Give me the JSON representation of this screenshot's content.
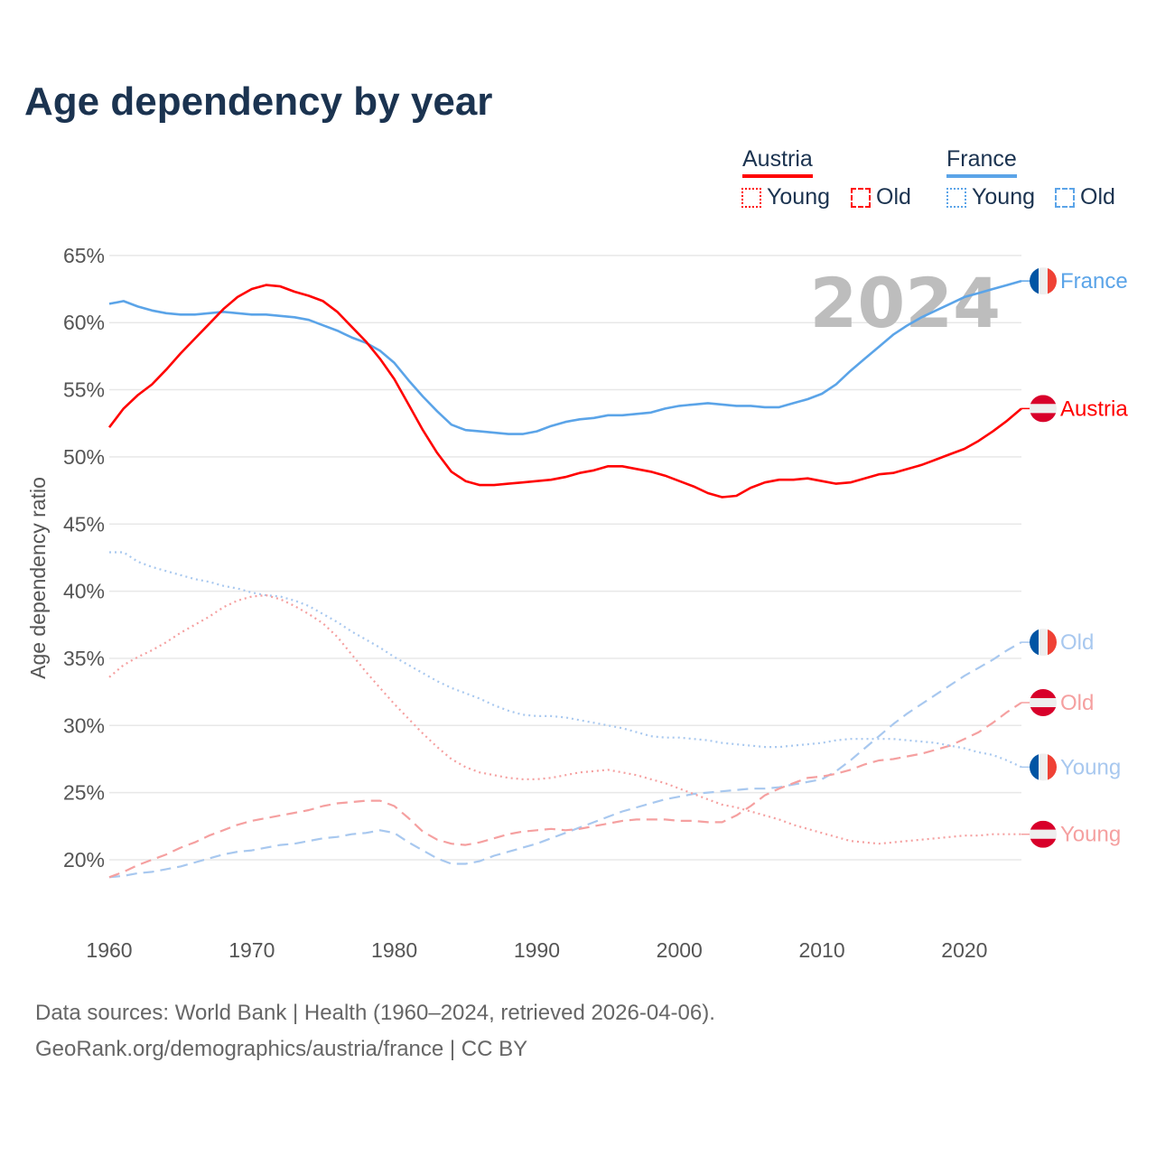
{
  "title": "Age dependency by year",
  "legend": {
    "austria": {
      "label": "Austria",
      "young": "Young",
      "old": "Old",
      "color": "#ff0000",
      "light": "#f5a0a0"
    },
    "france": {
      "label": "France",
      "young": "Young",
      "old": "Old",
      "color": "#5ba4e8",
      "light": "#a8c8ef"
    }
  },
  "footer": {
    "line1": "Data sources: World Bank | Health (1960–2024, retrieved 2026-04-06).",
    "line2": "GeoRank.org/demographics/austria/france | CC BY"
  },
  "chart_data": {
    "type": "line",
    "title": "Age dependency by year",
    "xlabel": "",
    "ylabel": "Age dependency ratio",
    "year_watermark": "2024",
    "xlim": [
      1960,
      2024
    ],
    "ylim": [
      15,
      65
    ],
    "x_ticks": [
      1960,
      1970,
      1980,
      1990,
      2000,
      2010,
      2020
    ],
    "y_ticks": [
      "20%",
      "25%",
      "30%",
      "35%",
      "40%",
      "45%",
      "50%",
      "55%",
      "60%",
      "65%"
    ],
    "y_tick_values": [
      20,
      25,
      30,
      35,
      40,
      45,
      50,
      55,
      60,
      65
    ],
    "grid": true,
    "x_start": 1960,
    "series": [
      {
        "name": "France",
        "country": "France",
        "kind": "total",
        "end_label": "France",
        "color": "#5ba4e8",
        "dash": "solid",
        "values": [
          61.4,
          61.6,
          61.2,
          60.9,
          60.7,
          60.6,
          60.6,
          60.7,
          60.8,
          60.7,
          60.6,
          60.6,
          60.5,
          60.4,
          60.2,
          59.8,
          59.4,
          58.9,
          58.5,
          57.9,
          57.0,
          55.7,
          54.5,
          53.4,
          52.4,
          52.0,
          51.9,
          51.8,
          51.7,
          51.7,
          51.9,
          52.3,
          52.6,
          52.8,
          52.9,
          53.1,
          53.1,
          53.2,
          53.3,
          53.6,
          53.8,
          53.9,
          54.0,
          53.9,
          53.8,
          53.8,
          53.7,
          53.7,
          54.0,
          54.3,
          54.7,
          55.4,
          56.4,
          57.3,
          58.2,
          59.1,
          59.8,
          60.4,
          60.9,
          61.4,
          61.9,
          62.2,
          62.5,
          62.8,
          63.1
        ]
      },
      {
        "name": "Austria",
        "country": "Austria",
        "kind": "total",
        "end_label": "Austria",
        "color": "#ff0000",
        "dash": "solid",
        "values": [
          52.2,
          53.6,
          54.6,
          55.4,
          56.5,
          57.7,
          58.8,
          59.9,
          61.0,
          61.9,
          62.5,
          62.8,
          62.7,
          62.3,
          62.0,
          61.6,
          60.8,
          59.7,
          58.6,
          57.3,
          55.8,
          53.9,
          52.0,
          50.3,
          48.9,
          48.2,
          47.9,
          47.9,
          48.0,
          48.1,
          48.2,
          48.3,
          48.5,
          48.8,
          49.0,
          49.3,
          49.3,
          49.1,
          48.9,
          48.6,
          48.2,
          47.8,
          47.3,
          47.0,
          47.1,
          47.7,
          48.1,
          48.3,
          48.3,
          48.4,
          48.2,
          48.0,
          48.1,
          48.4,
          48.7,
          48.8,
          49.1,
          49.4,
          49.8,
          50.2,
          50.6,
          51.2,
          51.9,
          52.7,
          53.6
        ]
      },
      {
        "name": "France Old",
        "country": "France",
        "kind": "old",
        "end_label": "Old",
        "color": "#a8c8ef",
        "dash": "dashed",
        "values": [
          18.7,
          18.8,
          19.0,
          19.1,
          19.3,
          19.5,
          19.8,
          20.1,
          20.4,
          20.6,
          20.7,
          20.9,
          21.1,
          21.2,
          21.4,
          21.6,
          21.7,
          21.9,
          22.0,
          22.2,
          22.0,
          21.3,
          20.7,
          20.1,
          19.7,
          19.7,
          19.9,
          20.3,
          20.6,
          20.9,
          21.2,
          21.6,
          22.0,
          22.4,
          22.8,
          23.2,
          23.6,
          23.9,
          24.2,
          24.5,
          24.7,
          24.9,
          25.0,
          25.1,
          25.2,
          25.3,
          25.3,
          25.4,
          25.6,
          25.8,
          26.0,
          26.6,
          27.4,
          28.3,
          29.2,
          30.1,
          30.9,
          31.6,
          32.3,
          33.0,
          33.7,
          34.3,
          34.9,
          35.6,
          36.2
        ]
      },
      {
        "name": "Austria Old",
        "country": "Austria",
        "kind": "old",
        "end_label": "Old",
        "color": "#f5a0a0",
        "dash": "dashed",
        "values": [
          18.7,
          19.1,
          19.6,
          20.0,
          20.4,
          20.9,
          21.3,
          21.8,
          22.2,
          22.6,
          22.9,
          23.1,
          23.3,
          23.5,
          23.7,
          24.0,
          24.2,
          24.3,
          24.4,
          24.4,
          24.0,
          23.1,
          22.1,
          21.5,
          21.2,
          21.1,
          21.3,
          21.6,
          21.9,
          22.1,
          22.2,
          22.3,
          22.2,
          22.3,
          22.5,
          22.7,
          22.9,
          23.0,
          23.0,
          23.0,
          22.9,
          22.9,
          22.8,
          22.8,
          23.3,
          24.0,
          24.8,
          25.3,
          25.7,
          26.1,
          26.2,
          26.4,
          26.7,
          27.1,
          27.4,
          27.5,
          27.7,
          27.9,
          28.2,
          28.5,
          29.0,
          29.5,
          30.2,
          31.0,
          31.7
        ]
      },
      {
        "name": "France Young",
        "country": "France",
        "kind": "young",
        "end_label": "Young",
        "color": "#a8c8ef",
        "dash": "dotted",
        "values": [
          42.9,
          42.9,
          42.2,
          41.8,
          41.5,
          41.2,
          40.9,
          40.7,
          40.4,
          40.2,
          39.9,
          39.7,
          39.6,
          39.3,
          38.9,
          38.3,
          37.7,
          37.0,
          36.4,
          35.8,
          35.1,
          34.5,
          33.9,
          33.3,
          32.8,
          32.4,
          32.0,
          31.5,
          31.1,
          30.8,
          30.7,
          30.7,
          30.6,
          30.4,
          30.2,
          30.0,
          29.8,
          29.5,
          29.2,
          29.1,
          29.1,
          29.0,
          28.9,
          28.7,
          28.6,
          28.5,
          28.4,
          28.4,
          28.5,
          28.6,
          28.7,
          28.9,
          29.0,
          29.0,
          29.0,
          29.0,
          28.9,
          28.8,
          28.7,
          28.5,
          28.3,
          28.0,
          27.8,
          27.4,
          26.9
        ]
      },
      {
        "name": "Austria Young",
        "country": "Austria",
        "kind": "young",
        "end_label": "Young",
        "color": "#f5a0a0",
        "dash": "dotted",
        "values": [
          33.6,
          34.5,
          35.1,
          35.6,
          36.2,
          36.9,
          37.5,
          38.1,
          38.8,
          39.3,
          39.6,
          39.7,
          39.4,
          38.9,
          38.3,
          37.6,
          36.6,
          35.3,
          34.0,
          32.8,
          31.6,
          30.5,
          29.4,
          28.4,
          27.5,
          26.9,
          26.5,
          26.3,
          26.1,
          26.0,
          26.0,
          26.1,
          26.3,
          26.5,
          26.6,
          26.7,
          26.5,
          26.3,
          26.0,
          25.7,
          25.3,
          24.9,
          24.5,
          24.1,
          23.9,
          23.6,
          23.3,
          23.0,
          22.6,
          22.3,
          22.0,
          21.7,
          21.4,
          21.3,
          21.2,
          21.3,
          21.4,
          21.5,
          21.6,
          21.7,
          21.8,
          21.8,
          21.9,
          21.9,
          21.9
        ]
      }
    ]
  }
}
